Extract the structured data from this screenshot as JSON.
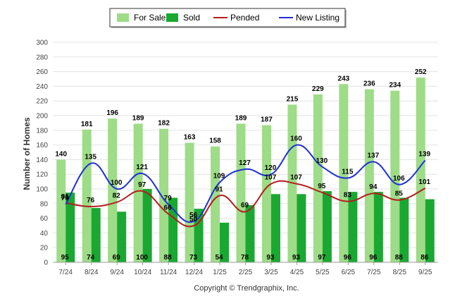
{
  "chart_data": {
    "type": "bar",
    "categories": [
      "7/24",
      "8/24",
      "9/24",
      "10/24",
      "11/24",
      "12/24",
      "1/25",
      "2/25",
      "3/25",
      "4/25",
      "5/25",
      "6/25",
      "7/25",
      "8/25",
      "9/25"
    ],
    "series": [
      {
        "name": "For Sale",
        "kind": "bar",
        "color": "#9edc88",
        "values": [
          140,
          181,
          196,
          189,
          182,
          163,
          158,
          189,
          187,
          215,
          229,
          243,
          236,
          234,
          252
        ]
      },
      {
        "name": "Sold",
        "kind": "bar",
        "color": "#1aa832",
        "values": [
          95,
          74,
          69,
          100,
          88,
          73,
          54,
          78,
          93,
          93,
          97,
          96,
          96,
          88,
          86
        ]
      },
      {
        "name": "Pended",
        "kind": "line",
        "color": "#b21d1d",
        "values": [
          81,
          76,
          82,
          97,
          66,
          50,
          91,
          69,
          107,
          107,
          95,
          83,
          94,
          85,
          101
        ]
      },
      {
        "name": "New Listing",
        "kind": "line",
        "color": "#1f2fd6",
        "values": [
          79,
          135,
          100,
          121,
          79,
          56,
          109,
          127,
          120,
          160,
          130,
          115,
          137,
          106,
          139
        ]
      }
    ],
    "ylabel": "Number of Homes",
    "xlabel": "",
    "ylim": [
      0,
      300
    ],
    "yticks": [
      0,
      20,
      40,
      60,
      80,
      100,
      120,
      140,
      160,
      180,
      200,
      220,
      240,
      260,
      280,
      300
    ],
    "grid": true,
    "legend": "top-center",
    "footer": "Copyright © Trendgraphix, Inc."
  }
}
